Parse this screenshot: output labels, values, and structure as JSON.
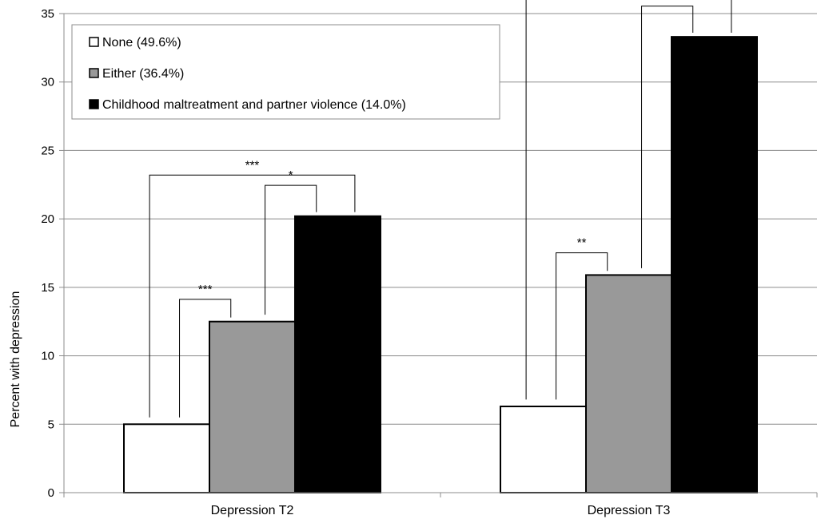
{
  "chart_data": {
    "type": "bar",
    "categories": [
      "Depression T2",
      "Depression T3"
    ],
    "series": [
      {
        "name": "None (49.6%)",
        "values": [
          5.0,
          6.3
        ],
        "color": "#ffffff"
      },
      {
        "name": "Either (36.4%)",
        "values": [
          12.5,
          15.9
        ],
        "color": "#999999"
      },
      {
        "name": "Childhood maltreatment and partner violence (14.0%)",
        "values": [
          20.2,
          33.3
        ],
        "color": "#000000"
      }
    ],
    "ylabel": "Percent with depression",
    "xlabel": "",
    "ylim": [
      0,
      35
    ],
    "yticks": [
      "0",
      "5",
      "10",
      "15",
      "20",
      "25",
      "30",
      "35"
    ],
    "grid": true,
    "legend_position": "top-left",
    "significance": [
      {
        "category": 0,
        "from_series": 0,
        "to_series": 2,
        "label": "***"
      },
      {
        "category": 0,
        "from_series": 0,
        "to_series": 1,
        "label": "***"
      },
      {
        "category": 0,
        "from_series": 1,
        "to_series": 2,
        "label": "*"
      },
      {
        "category": 1,
        "from_series": 0,
        "to_series": 2,
        "label": "***"
      },
      {
        "category": 1,
        "from_series": 0,
        "to_series": 1,
        "label": "**"
      },
      {
        "category": 1,
        "from_series": 1,
        "to_series": 2,
        "label": "***"
      }
    ]
  }
}
